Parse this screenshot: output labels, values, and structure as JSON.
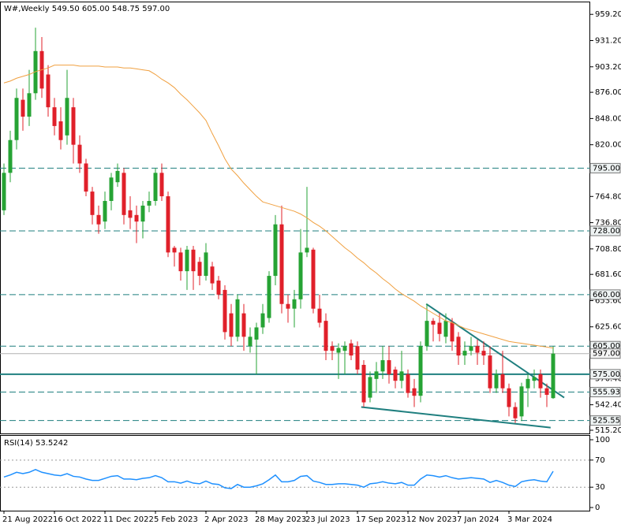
{
  "chart_data": [
    {
      "type": "candlestick",
      "title": "W#,Weekly  549.50 605.00 548.75 597.00",
      "categories": [
        "21 Aug 2022",
        null,
        null,
        null,
        null,
        null,
        null,
        null,
        "16 Oct 2022",
        null,
        null,
        null,
        null,
        null,
        null,
        null,
        "11 Dec 2022",
        null,
        null,
        null,
        null,
        null,
        null,
        null,
        "5 Feb 2023",
        null,
        null,
        null,
        null,
        null,
        null,
        null,
        "2 Apr 2023",
        null,
        null,
        null,
        null,
        null,
        null,
        null,
        "28 May 2023",
        null,
        null,
        null,
        null,
        null,
        null,
        null,
        "23 Jul 2023",
        null,
        null,
        null,
        null,
        null,
        null,
        null,
        "17 Sep 2023",
        null,
        null,
        null,
        null,
        null,
        null,
        null,
        "12 Nov 2023",
        null,
        null,
        null,
        null,
        null,
        null,
        null,
        "7 Jan 2024",
        null,
        null,
        null,
        null,
        null,
        null,
        null,
        "3 Mar 2024",
        null,
        null,
        null,
        null,
        null,
        null,
        null
      ],
      "open": [
        750,
        790,
        825,
        868,
        850,
        875,
        920,
        895,
        860,
        845,
        830,
        860,
        820,
        800,
        770,
        745,
        738,
        760,
        780,
        790,
        750,
        745,
        738,
        755,
        760,
        790,
        765,
        710,
        705,
        685,
        708,
        695,
        680,
        690,
        675,
        665,
        640,
        615,
        640,
        605,
        612,
        625,
        635,
        680,
        735,
        650,
        645,
        655,
        705,
        708,
        645,
        632,
        605,
        598,
        600,
        608,
        605,
        585,
        550,
        570,
        578,
        590,
        580,
        568,
        575,
        560,
        552,
        605,
        632,
        630,
        615,
        630,
        615,
        595,
        600,
        605,
        600,
        595,
        560,
        575,
        560,
        540,
        530,
        560,
        568,
        575,
        560,
        549.5
      ],
      "high": [
        800,
        835,
        880,
        880,
        900,
        945,
        935,
        905,
        870,
        860,
        900,
        870,
        830,
        805,
        775,
        755,
        770,
        790,
        800,
        795,
        765,
        755,
        760,
        770,
        795,
        800,
        770,
        712,
        710,
        712,
        712,
        700,
        715,
        695,
        680,
        670,
        650,
        660,
        650,
        625,
        630,
        650,
        685,
        745,
        755,
        660,
        665,
        730,
        775,
        710,
        660,
        640,
        610,
        608,
        610,
        612,
        610,
        590,
        578,
        588,
        605,
        605,
        583,
        600,
        580,
        570,
        610,
        650,
        635,
        640,
        640,
        635,
        620,
        610,
        615,
        612,
        610,
        605,
        580,
        600,
        565,
        545,
        566,
        575,
        580,
        580,
        565,
        605
      ],
      "low": [
        745,
        780,
        815,
        835,
        840,
        868,
        870,
        850,
        830,
        815,
        820,
        800,
        790,
        765,
        735,
        725,
        730,
        750,
        775,
        735,
        730,
        715,
        720,
        748,
        755,
        760,
        700,
        690,
        675,
        665,
        665,
        670,
        675,
        665,
        655,
        612,
        605,
        610,
        600,
        598,
        575,
        618,
        630,
        670,
        640,
        630,
        625,
        645,
        700,
        640,
        625,
        590,
        590,
        570,
        575,
        590,
        575,
        540,
        545,
        555,
        570,
        565,
        560,
        560,
        550,
        540,
        545,
        600,
        610,
        610,
        608,
        600,
        585,
        585,
        595,
        585,
        585,
        555,
        555,
        555,
        530,
        523,
        525,
        540,
        560,
        550,
        540,
        548.75
      ],
      "close": [
        790,
        825,
        870,
        850,
        875,
        920,
        880,
        860,
        840,
        825,
        870,
        820,
        800,
        770,
        745,
        735,
        760,
        785,
        792,
        745,
        742,
        738,
        755,
        760,
        790,
        765,
        705,
        705,
        685,
        708,
        685,
        680,
        705,
        672,
        660,
        620,
        615,
        655,
        615,
        615,
        625,
        640,
        680,
        735,
        650,
        645,
        655,
        705,
        710,
        645,
        630,
        600,
        600,
        603,
        605,
        595,
        580,
        545,
        572,
        578,
        590,
        575,
        568,
        578,
        555,
        552,
        605,
        632,
        628,
        618,
        632,
        610,
        595,
        600,
        605,
        598,
        595,
        560,
        575,
        560,
        540,
        528,
        562,
        570,
        572,
        560,
        553,
        597
      ],
      "up_color": "#26a334",
      "down_color": "#e0202a",
      "ma": {
        "color": "#f0a040",
        "values": [
          886,
          888,
          891,
          893,
          895,
          898,
          900,
          902,
          905,
          905,
          905,
          905,
          904,
          904,
          904,
          904,
          903,
          903,
          903,
          902,
          902,
          901,
          900,
          899,
          895,
          890,
          886,
          881,
          874,
          868,
          861,
          854,
          846,
          832,
          819,
          805,
          794,
          787,
          779,
          772,
          765,
          759,
          757,
          755,
          753,
          751,
          749,
          746,
          742,
          737,
          733,
          728,
          722,
          716,
          710,
          705,
          699,
          694,
          688,
          683,
          677,
          672,
          666,
          661,
          657,
          653,
          648,
          644,
          640,
          636,
          632,
          630,
          627,
          624,
          622,
          620,
          618,
          616,
          614,
          612,
          610,
          609,
          608,
          607,
          606,
          605,
          604,
          603
        ]
      },
      "ylim": [
        511.8,
        972
      ],
      "yticks": [
        {
          "value": 959.2,
          "label": "959.20"
        },
        {
          "value": 931.2,
          "label": "931.20"
        },
        {
          "value": 903.2,
          "label": "903.20"
        },
        {
          "value": 876,
          "label": "876.00"
        },
        {
          "value": 848,
          "label": "848.00"
        },
        {
          "value": 820,
          "label": "820.00"
        },
        {
          "value": 764.8,
          "label": "764.80"
        },
        {
          "value": 736.8,
          "label": "736.80"
        },
        {
          "value": 708.8,
          "label": "708.80"
        },
        {
          "value": 681.6,
          "label": "681.60"
        },
        {
          "value": 653.6,
          "label": "653.60"
        },
        {
          "value": 625.6,
          "label": "625.60"
        },
        {
          "value": 570.4,
          "label": "570.40"
        },
        {
          "value": 542.4,
          "label": "542.40"
        },
        {
          "value": 515.2,
          "label": "515.20"
        }
      ],
      "level_color": "#1f7f7f",
      "levels": [
        {
          "value": 795,
          "label": "795.00",
          "style": "dashed"
        },
        {
          "value": 728,
          "label": "728.00",
          "style": "dashed"
        },
        {
          "value": 660,
          "label": "660.00",
          "style": "dashed"
        },
        {
          "value": 605,
          "label": "605.00",
          "style": "dashed"
        },
        {
          "value": 575,
          "label": "575.00",
          "style": "solid"
        },
        {
          "value": 555.93,
          "label": "555.93",
          "style": "dashed"
        },
        {
          "value": 525.55,
          "label": "525.55",
          "style": "dashed"
        }
      ],
      "current": {
        "value": 597,
        "label": "597.00",
        "color": "#b0b0b0"
      },
      "trendlines": [
        {
          "x": [
            66.9,
            88.75
          ],
          "y": [
            650,
            550
          ]
        },
        {
          "x": [
            56.6,
            86.6
          ],
          "y": [
            540,
            518
          ]
        }
      ]
    },
    {
      "type": "line",
      "title": "RSI(14) 53.5242",
      "series": [
        {
          "color": "#1e90ff",
          "values": [
            45,
            48,
            52,
            50,
            52,
            56,
            52,
            50,
            48,
            47,
            50,
            46,
            45,
            42,
            40,
            40,
            43,
            46,
            47,
            42,
            42,
            41,
            43,
            44,
            47,
            44,
            38,
            38,
            36,
            39,
            36,
            35,
            39,
            35,
            34,
            29,
            28,
            34,
            30,
            30,
            32,
            35,
            41,
            48,
            38,
            38,
            40,
            46,
            47,
            39,
            37,
            34,
            34,
            35,
            35,
            34,
            33,
            30,
            35,
            36,
            38,
            36,
            35,
            37,
            33,
            33,
            42,
            48,
            47,
            45,
            47,
            44,
            42,
            43,
            44,
            43,
            42,
            37,
            40,
            37,
            33,
            31,
            38,
            40,
            41,
            39,
            38,
            53.5242
          ]
        }
      ],
      "ylim": [
        -4.65,
        107
      ],
      "yticks": [
        100,
        70,
        30,
        0
      ],
      "guides": [
        70,
        30
      ]
    }
  ]
}
